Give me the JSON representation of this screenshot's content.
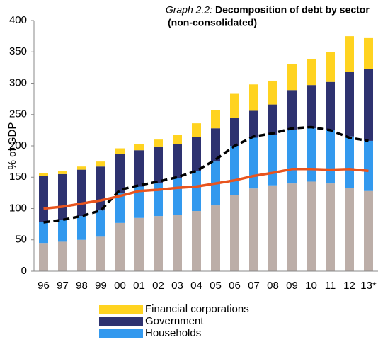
{
  "chart_data": {
    "type": "bar",
    "stacked": true,
    "title_label": "Graph 2.2:",
    "title": "Decomposition of debt by sector",
    "subtitle": "(non-consolidated)",
    "ylabel": "% of GDP",
    "categories": [
      "96",
      "97",
      "98",
      "99",
      "00",
      "01",
      "02",
      "03",
      "04",
      "05",
      "06",
      "07",
      "08",
      "09",
      "10",
      "11",
      "12",
      "13*"
    ],
    "ylim": [
      0,
      400
    ],
    "yticks": [
      0,
      50,
      100,
      150,
      200,
      250,
      300,
      350,
      400
    ],
    "series": [
      {
        "type": "bar",
        "color": "#bcaea8",
        "values": [
          45,
          47,
          50,
          55,
          77,
          85,
          88,
          90,
          96,
          105,
          122,
          132,
          137,
          140,
          143,
          140,
          133,
          128
        ]
      },
      {
        "type": "bar",
        "name": "Households",
        "color": "#3399ee",
        "values": [
          33,
          35,
          38,
          42,
          48,
          50,
          52,
          58,
          64,
          70,
          78,
          81,
          81,
          85,
          85,
          85,
          82,
          80
        ]
      },
      {
        "type": "bar",
        "name": "Government",
        "color": "#2e3270",
        "values": [
          74,
          73,
          74,
          70,
          62,
          58,
          59,
          55,
          54,
          53,
          45,
          43,
          48,
          64,
          69,
          77,
          103,
          115
        ]
      },
      {
        "type": "bar",
        "name": "Financial corporations",
        "color": "#ffd320",
        "values": [
          5,
          5,
          5,
          8,
          9,
          10,
          11,
          15,
          22,
          29,
          38,
          42,
          38,
          42,
          42,
          48,
          57,
          50
        ]
      },
      {
        "type": "line",
        "color": "#000000",
        "dashed": true,
        "values": [
          78,
          82,
          88,
          97,
          130,
          137,
          143,
          150,
          160,
          178,
          200,
          215,
          220,
          228,
          230,
          225,
          213,
          208
        ]
      },
      {
        "type": "line",
        "color": "#e8541e",
        "dashed": false,
        "values": [
          100,
          103,
          108,
          113,
          120,
          128,
          130,
          133,
          135,
          140,
          145,
          152,
          157,
          163,
          163,
          162,
          163,
          160
        ]
      }
    ]
  }
}
